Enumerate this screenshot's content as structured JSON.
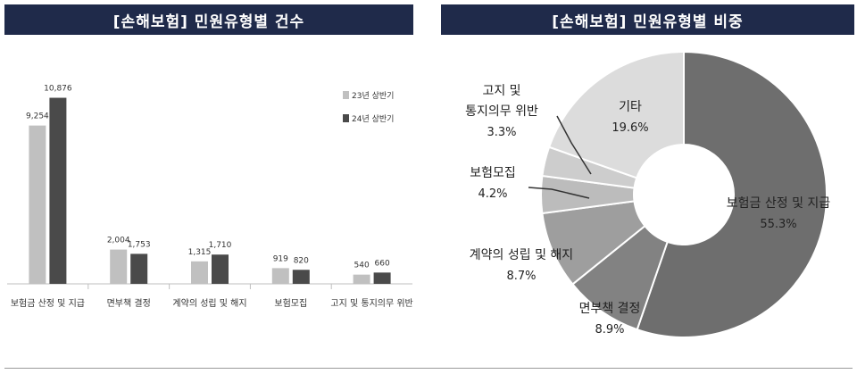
{
  "charts": {
    "left_title": "[손해보험] 민원유형별 건수",
    "right_title": "[손해보험] 민원유형별 비중"
  },
  "chart_data": [
    {
      "type": "bar",
      "title": "[손해보험] 민원유형별 건수",
      "categories": [
        "보험금 산정 및 지급",
        "면부책 결정",
        "계약의 성립 및 해지",
        "보험모집",
        "고지 및 통지의무 위반"
      ],
      "series": [
        {
          "name": "23년 상반기",
          "values": [
            9254,
            2004,
            1315,
            919,
            540
          ],
          "labels": [
            "9,254",
            "2,004",
            "1,315",
            "919",
            "540"
          ],
          "color": "#c0c0c0"
        },
        {
          "name": "24년 상반기",
          "values": [
            10876,
            1753,
            1710,
            820,
            660
          ],
          "labels": [
            "10,876",
            "1,753",
            "1,710",
            "820",
            "660"
          ],
          "color": "#4a4a4a"
        }
      ],
      "ylim": [
        0,
        12000
      ],
      "grid": false,
      "legend": "top-right"
    },
    {
      "type": "pie",
      "title": "[손해보험] 민원유형별 비중",
      "slices": [
        {
          "label": [
            "보험금 산정 및 지급"
          ],
          "value": 55.3,
          "pct": "55.3%",
          "color": "#6e6e6e"
        },
        {
          "label": [
            "면부책 결정"
          ],
          "value": 8.9,
          "pct": "8.9%",
          "color": "#828282"
        },
        {
          "label": [
            "계약의 성립 및 해지"
          ],
          "value": 8.7,
          "pct": "8.7%",
          "color": "#9e9e9e"
        },
        {
          "label": [
            "보험모집"
          ],
          "value": 4.2,
          "pct": "4.2%",
          "color": "#bcbcbc"
        },
        {
          "label": [
            "고지 및",
            "통지의무 위반"
          ],
          "value": 3.3,
          "pct": "3.3%",
          "color": "#cdcdcd"
        },
        {
          "label": [
            "기타"
          ],
          "value": 19.6,
          "pct": "19.6%",
          "color": "#dcdcdc"
        }
      ],
      "hole": true
    }
  ]
}
